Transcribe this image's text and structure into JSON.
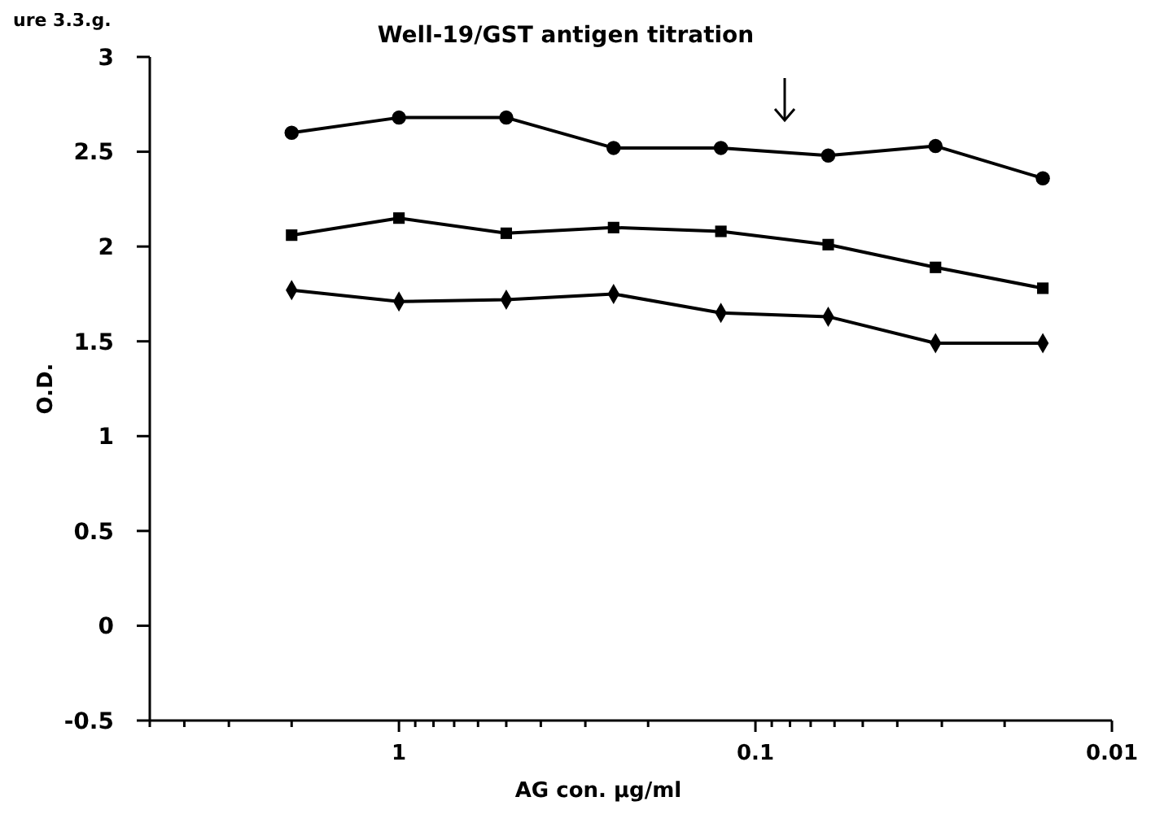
{
  "chart_data": {
    "type": "line",
    "title": "Well-19/GST antigen titration",
    "xlabel": "AG con. µg/ml",
    "ylabel": "O.D.",
    "annotations": [
      "ure 3.3.g."
    ],
    "log": "x",
    "x": [
      2,
      1,
      0.5,
      0.25,
      0.125,
      0.0625,
      0.03125,
      0.015625
    ],
    "xlim": [
      5,
      0.01
    ],
    "xticks": [
      {
        "value": 5,
        "label": null
      },
      {
        "value": 4,
        "label": null
      },
      {
        "value": 3,
        "label": null
      },
      {
        "value": 2,
        "label": null
      },
      1,
      {
        "value": 0.9,
        "label": null
      },
      {
        "value": 0.8,
        "label": null
      },
      {
        "value": 0.7,
        "label": null
      },
      {
        "value": 0.6,
        "label": null
      },
      {
        "value": 0.5,
        "label": null
      },
      {
        "value": 0.4,
        "label": null
      },
      {
        "value": 0.3,
        "label": null
      },
      {
        "value": 0.2,
        "label": null
      },
      0.1,
      {
        "value": 0.09,
        "label": null
      },
      {
        "value": 0.08,
        "label": null
      },
      {
        "value": 0.07,
        "label": null
      },
      {
        "value": 0.06,
        "label": null
      },
      {
        "value": 0.05,
        "label": null
      },
      {
        "value": 0.04,
        "label": null
      },
      {
        "value": 0.03,
        "label": null
      },
      {
        "value": 0.02,
        "label": null
      },
      0.01
    ],
    "ylim": [
      -0.5,
      3
    ],
    "yticks": [
      -0.5,
      0,
      0.5,
      1,
      1.5,
      2,
      2.5,
      3
    ],
    "grid": false,
    "line_style": "solid",
    "series": [
      {
        "color": "#000000",
        "marker": "circle",
        "values": [
          2.6,
          2.68,
          2.68,
          2.52,
          2.52,
          2.48,
          2.53,
          2.36
        ]
      },
      {
        "color": "#000000",
        "marker": "square",
        "values": [
          2.06,
          2.15,
          2.07,
          2.1,
          2.08,
          2.01,
          1.89,
          1.78
        ]
      },
      {
        "color": "#000000",
        "marker": "diamond",
        "values": [
          1.77,
          1.71,
          1.72,
          1.75,
          1.65,
          1.63,
          1.49,
          1.49
        ]
      }
    ]
  }
}
